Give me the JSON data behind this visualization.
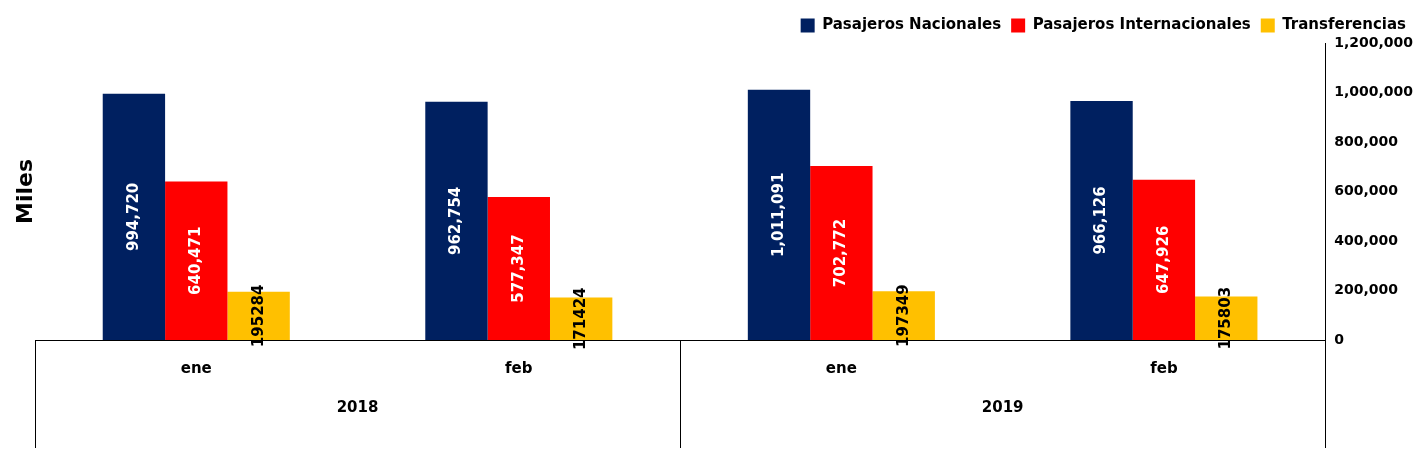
{
  "chart_data": {
    "type": "bar",
    "ylabel": "Miles",
    "categories": [
      "ene",
      "feb",
      "ene",
      "feb"
    ],
    "series": [
      {
        "name": "Pasajeros Nacionales",
        "color": "#002060",
        "values": [
          994720,
          962754,
          1011091,
          966126
        ],
        "value_labels": [
          "994,720",
          "962,754",
          "1,011,091",
          "966,126"
        ]
      },
      {
        "name": "Pasajeros Internacionales",
        "color": "#ff0000",
        "values": [
          640471,
          577347,
          702772,
          647926
        ],
        "value_labels": [
          "640,471",
          "577,347",
          "702,772",
          "647,926"
        ]
      },
      {
        "name": "Transferencias",
        "color": "#ffc000",
        "values": [
          195284,
          171424,
          197349,
          175803
        ],
        "value_labels": [
          "195284",
          "171424",
          "197349",
          "175803"
        ]
      }
    ],
    "annotations": [
      "2018",
      "2019"
    ],
    "ylim": [
      0,
      1200000
    ],
    "yticks": [
      {
        "value": 0,
        "label": "0"
      },
      {
        "value": 200000,
        "label": "200,000"
      },
      {
        "value": 400000,
        "label": "400,000"
      },
      {
        "value": 600000,
        "label": "600,000"
      },
      {
        "value": 800000,
        "label": "800,000"
      },
      {
        "value": 1000000,
        "label": "1,000,000"
      },
      {
        "value": 1200000,
        "label": "1,200,000"
      }
    ],
    "grid": false,
    "legend": "top right"
  }
}
